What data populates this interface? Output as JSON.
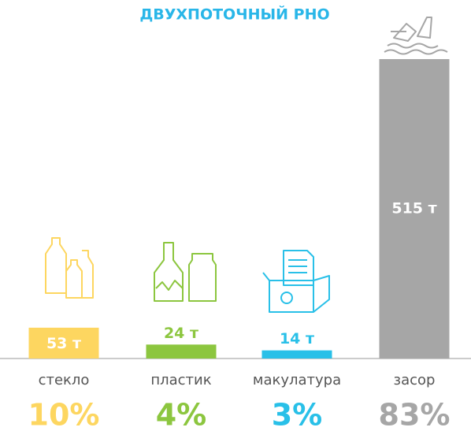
{
  "chart_data": {
    "type": "bar",
    "title": "ДВУХПОТОЧНЫЙ РНО",
    "categories": [
      "стекло",
      "пластик",
      "макулатура",
      "засор"
    ],
    "values": [
      53,
      24,
      14,
      515
    ],
    "value_labels": [
      "53 т",
      "24 т",
      "14 т",
      "515 т"
    ],
    "colors": [
      "#fdd660",
      "#8cc63f",
      "#29c0e8",
      "#a6a6a6"
    ],
    "shares": {
      "values": [
        10,
        4,
        3,
        83
      ],
      "value_labels": [
        "10%",
        "4%",
        "3%",
        "83%"
      ]
    }
  }
}
